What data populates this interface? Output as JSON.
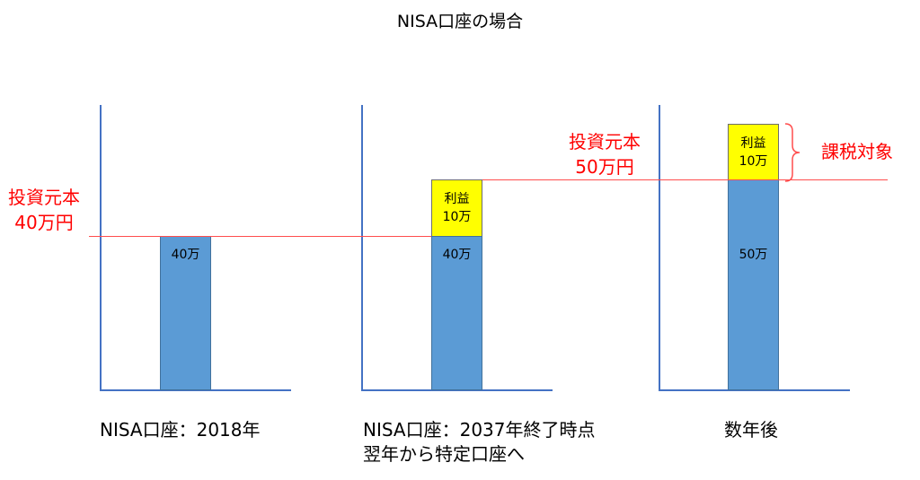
{
  "title": "NISA口座の場合",
  "colors": {
    "bar_principal": "#5b9bd5",
    "bar_profit": "#ffff00",
    "axis": "#4472c4",
    "reference_line": "#ff4d4d",
    "annotation_text": "#ff0000"
  },
  "panels": [
    {
      "caption_lines": [
        "NISA口座：2018年"
      ],
      "principal_label": "40万",
      "principal_value": 40,
      "profit_label": "",
      "profit_value": 0
    },
    {
      "caption_lines": [
        "NISA口座：2037年終了時点",
        "翌年から特定口座へ"
      ],
      "principal_label": "40万",
      "principal_value": 40,
      "profit_label_lines": [
        "利益",
        "10万"
      ],
      "profit_value": 10
    },
    {
      "caption_lines": [
        "数年後"
      ],
      "principal_label": "50万",
      "principal_value": 50,
      "profit_label_lines": [
        "利益",
        "10万"
      ],
      "profit_value": 10
    }
  ],
  "annotations": {
    "principal_40_lines": [
      "投資元本",
      "40万円"
    ],
    "principal_50_lines": [
      "投資元本",
      "50万円"
    ],
    "taxable": "課税対象"
  }
}
